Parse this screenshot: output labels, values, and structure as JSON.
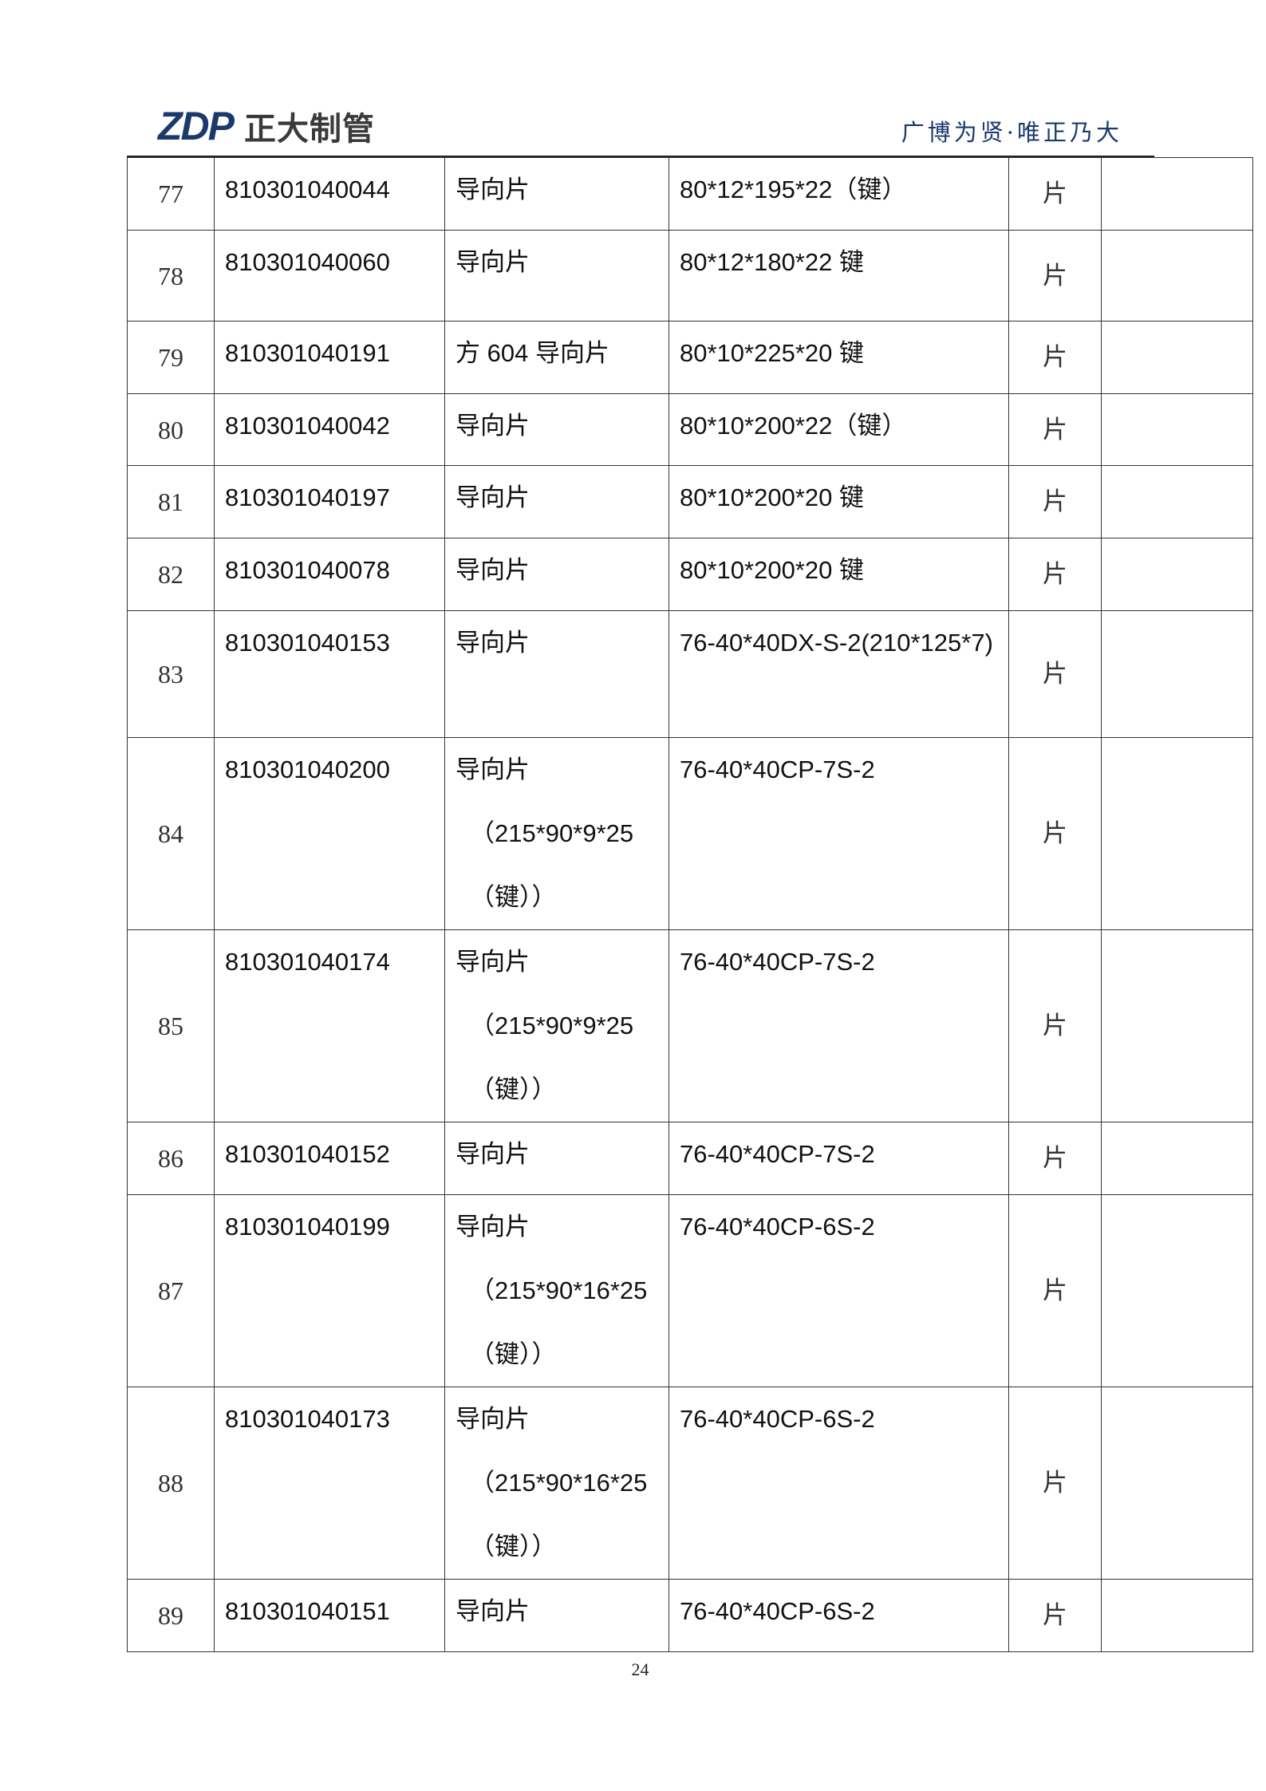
{
  "header": {
    "logo_mark": "ZDP",
    "logo_text": "正大制管",
    "slogan": "广博为贤·唯正乃大",
    "brand_color": "#1b3a6b"
  },
  "rows": [
    {
      "no": "77",
      "code": "810301040044",
      "name": [
        "导向片"
      ],
      "spec": "80*12*195*22（键）",
      "unit": "片",
      "remark": ""
    },
    {
      "no": "78",
      "code": "810301040060",
      "name": [
        "导向片"
      ],
      "spec": "80*12*180*22 键",
      "unit": "片",
      "remark": ""
    },
    {
      "no": "79",
      "code": "810301040191",
      "name": [
        "方 604 导向片"
      ],
      "spec": "80*10*225*20 键",
      "unit": "片",
      "remark": ""
    },
    {
      "no": "80",
      "code": "810301040042",
      "name": [
        "导向片"
      ],
      "spec": "80*10*200*22（键）",
      "unit": "片",
      "remark": ""
    },
    {
      "no": "81",
      "code": "810301040197",
      "name": [
        "导向片"
      ],
      "spec": "80*10*200*20 键",
      "unit": "片",
      "remark": ""
    },
    {
      "no": "82",
      "code": "810301040078",
      "name": [
        "导向片"
      ],
      "spec": "80*10*200*20 键",
      "unit": "片",
      "remark": ""
    },
    {
      "no": "83",
      "code": "810301040153",
      "name": [
        "导向片"
      ],
      "spec": "76-40*40DX-S-2(210*125*7)",
      "unit": "片",
      "remark": ""
    },
    {
      "no": "84",
      "code": "810301040200",
      "name": [
        "导向片",
        "（215*90*9*25",
        "（键））"
      ],
      "spec": "76-40*40CP-7S-2",
      "unit": "片",
      "remark": ""
    },
    {
      "no": "85",
      "code": "810301040174",
      "name": [
        "导向片",
        "（215*90*9*25",
        "（键））"
      ],
      "spec": "76-40*40CP-7S-2",
      "unit": "片",
      "remark": ""
    },
    {
      "no": "86",
      "code": "810301040152",
      "name": [
        "导向片"
      ],
      "spec": "76-40*40CP-7S-2",
      "unit": "片",
      "remark": ""
    },
    {
      "no": "87",
      "code": "810301040199",
      "name": [
        "导向片",
        "（215*90*16*25",
        "（键））"
      ],
      "spec": "76-40*40CP-6S-2",
      "unit": "片",
      "remark": ""
    },
    {
      "no": "88",
      "code": "810301040173",
      "name": [
        "导向片",
        "（215*90*16*25",
        "（键））"
      ],
      "spec": "76-40*40CP-6S-2",
      "unit": "片",
      "remark": ""
    },
    {
      "no": "89",
      "code": "810301040151",
      "name": [
        "导向片"
      ],
      "spec": "76-40*40CP-6S-2",
      "unit": "片",
      "remark": ""
    }
  ],
  "footer": {
    "page_number": "24"
  }
}
